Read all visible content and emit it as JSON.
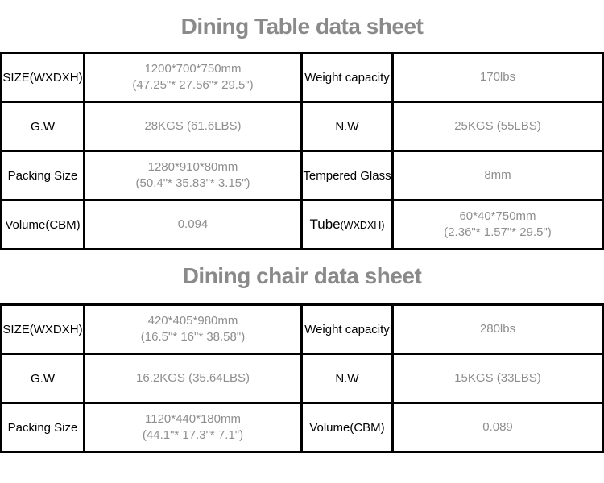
{
  "colors": {
    "background": "#ffffff",
    "border": "#000000",
    "label_text": "#000000",
    "value_text": "#8e8e8e",
    "title_text": "#8a8a8a"
  },
  "table1": {
    "title": "Dining Table data sheet",
    "rows": [
      {
        "l1": "SIZE(WXDXH)",
        "v1a": "1200*700*750mm",
        "v1b": "(47.25\"* 27.56\"* 29.5\")",
        "l2": "Weight capacity",
        "v2a": "170lbs"
      },
      {
        "l1": "G.W",
        "v1a": "28KGS (61.6LBS)",
        "l2": "N.W",
        "v2a": "25KGS (55LBS)"
      },
      {
        "l1": "Packing Size",
        "v1a": "1280*910*80mm",
        "v1b": "(50.4\"* 35.83\"* 3.15\")",
        "l2": "Tempered Glass",
        "v2a": "8mm"
      },
      {
        "l1": "Volume(CBM)",
        "v1a": "0.094",
        "l2_main": "Tube",
        "l2_sub": "(WXDXH)",
        "v2a": "60*40*750mm",
        "v2b": "(2.36\"* 1.57\"* 29.5\")"
      }
    ]
  },
  "table2": {
    "title": "Dining chair data sheet",
    "rows": [
      {
        "l1": "SIZE(WXDXH)",
        "v1a": "420*405*980mm",
        "v1b": "(16.5\"* 16\"* 38.58\")",
        "l2": "Weight capacity",
        "v2a": "280lbs"
      },
      {
        "l1": "G.W",
        "v1a": "16.2KGS (35.64LBS)",
        "l2": "N.W",
        "v2a": "15KGS (33LBS)"
      },
      {
        "l1": "Packing Size",
        "v1a": "1120*440*180mm",
        "v1b": "(44.1\"* 17.3\"* 7.1\")",
        "l2": "Volume(CBM)",
        "v2a": "0.089"
      }
    ]
  }
}
